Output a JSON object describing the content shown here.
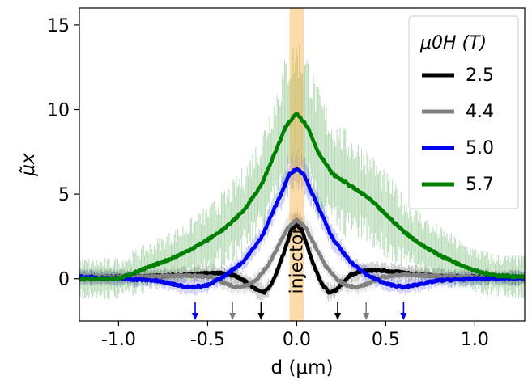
{
  "chart_data": {
    "type": "line",
    "xlabel": "d (μm)",
    "ylabel": "μ̃x",
    "xlim": [
      -1.22,
      1.28
    ],
    "ylim": [
      -2.5,
      16.0
    ],
    "x_ticks": [
      {
        "value": -1.0,
        "label": "-1.0"
      },
      {
        "value": -0.5,
        "label": "-0.5"
      },
      {
        "value": 0.0,
        "label": "0.0"
      },
      {
        "value": 0.5,
        "label": "0.5"
      },
      {
        "value": 1.0,
        "label": "1.0"
      }
    ],
    "y_ticks": [
      {
        "value": 0,
        "label": "0"
      },
      {
        "value": 5,
        "label": "5"
      },
      {
        "value": 10,
        "label": "10"
      },
      {
        "value": 15,
        "label": "15"
      }
    ],
    "legend": {
      "title": "μ0H (T)",
      "location": "upper right"
    },
    "annotation": {
      "text": "injector",
      "x": 0.0,
      "band_halfwidth": 0.04,
      "color": "#f5a623"
    },
    "series": [
      {
        "name": "2.5",
        "color": "#000000",
        "x": [
          -1.2,
          -1.0,
          -0.8,
          -0.6,
          -0.45,
          -0.35,
          -0.28,
          -0.22,
          -0.18,
          -0.14,
          -0.1,
          -0.06,
          -0.03,
          0.0,
          0.03,
          0.06,
          0.1,
          0.14,
          0.18,
          0.22,
          0.26,
          0.3,
          0.36,
          0.45,
          0.6,
          0.8,
          1.0,
          1.27
        ],
        "y": [
          0.1,
          0.1,
          0.15,
          0.25,
          0.35,
          0.2,
          -0.2,
          -0.7,
          -0.8,
          -0.3,
          0.7,
          1.9,
          2.9,
          3.2,
          2.9,
          1.9,
          0.7,
          -0.3,
          -0.8,
          -0.7,
          -0.2,
          0.2,
          0.45,
          0.5,
          0.35,
          0.15,
          0.1,
          0.05
        ],
        "marker_x": 0.23,
        "marker_neg_x": -0.2
      },
      {
        "name": "4.4",
        "color": "#808080",
        "x": [
          -1.2,
          -1.0,
          -0.8,
          -0.6,
          -0.48,
          -0.4,
          -0.34,
          -0.28,
          -0.22,
          -0.16,
          -0.1,
          -0.05,
          0.0,
          0.05,
          0.1,
          0.16,
          0.22,
          0.28,
          0.34,
          0.4,
          0.48,
          0.6,
          0.8,
          1.0,
          1.27
        ],
        "y": [
          0.1,
          0.1,
          0.12,
          0.2,
          0.1,
          -0.3,
          -0.5,
          -0.4,
          0.0,
          0.8,
          2.0,
          3.0,
          3.5,
          3.0,
          2.0,
          0.8,
          0.0,
          -0.4,
          -0.5,
          -0.3,
          0.1,
          0.25,
          0.15,
          0.1,
          0.05
        ],
        "marker_x": 0.39,
        "marker_neg_x": -0.36
      },
      {
        "name": "5.0",
        "color": "#0000ee",
        "x": [
          -1.2,
          -1.0,
          -0.8,
          -0.7,
          -0.6,
          -0.5,
          -0.4,
          -0.3,
          -0.2,
          -0.14,
          -0.08,
          -0.04,
          0.0,
          0.04,
          0.08,
          0.14,
          0.2,
          0.3,
          0.4,
          0.5,
          0.6,
          0.7,
          0.8,
          1.0,
          1.27
        ],
        "y": [
          0.1,
          0.0,
          -0.1,
          -0.3,
          -0.5,
          -0.4,
          0.2,
          1.0,
          2.4,
          3.8,
          5.2,
          6.2,
          6.5,
          6.2,
          5.2,
          3.8,
          2.4,
          1.0,
          0.2,
          -0.3,
          -0.5,
          -0.3,
          -0.1,
          0.0,
          0.05
        ],
        "marker_x": 0.6,
        "marker_neg_x": -0.57
      },
      {
        "name": "5.7",
        "color": "#008000",
        "x": [
          -1.2,
          -1.0,
          -0.9,
          -0.8,
          -0.7,
          -0.6,
          -0.5,
          -0.4,
          -0.3,
          -0.2,
          -0.12,
          -0.06,
          0.0,
          0.06,
          0.12,
          0.2,
          0.3,
          0.4,
          0.5,
          0.6,
          0.7,
          0.8,
          0.9,
          1.0,
          1.1,
          1.27
        ],
        "y": [
          0.0,
          0.0,
          0.4,
          0.8,
          1.2,
          1.7,
          2.3,
          3.0,
          4.0,
          5.5,
          7.5,
          9.0,
          9.8,
          9.0,
          7.5,
          6.2,
          5.5,
          4.8,
          3.8,
          2.8,
          2.0,
          1.4,
          0.9,
          0.5,
          0.2,
          0.1
        ]
      }
    ]
  }
}
